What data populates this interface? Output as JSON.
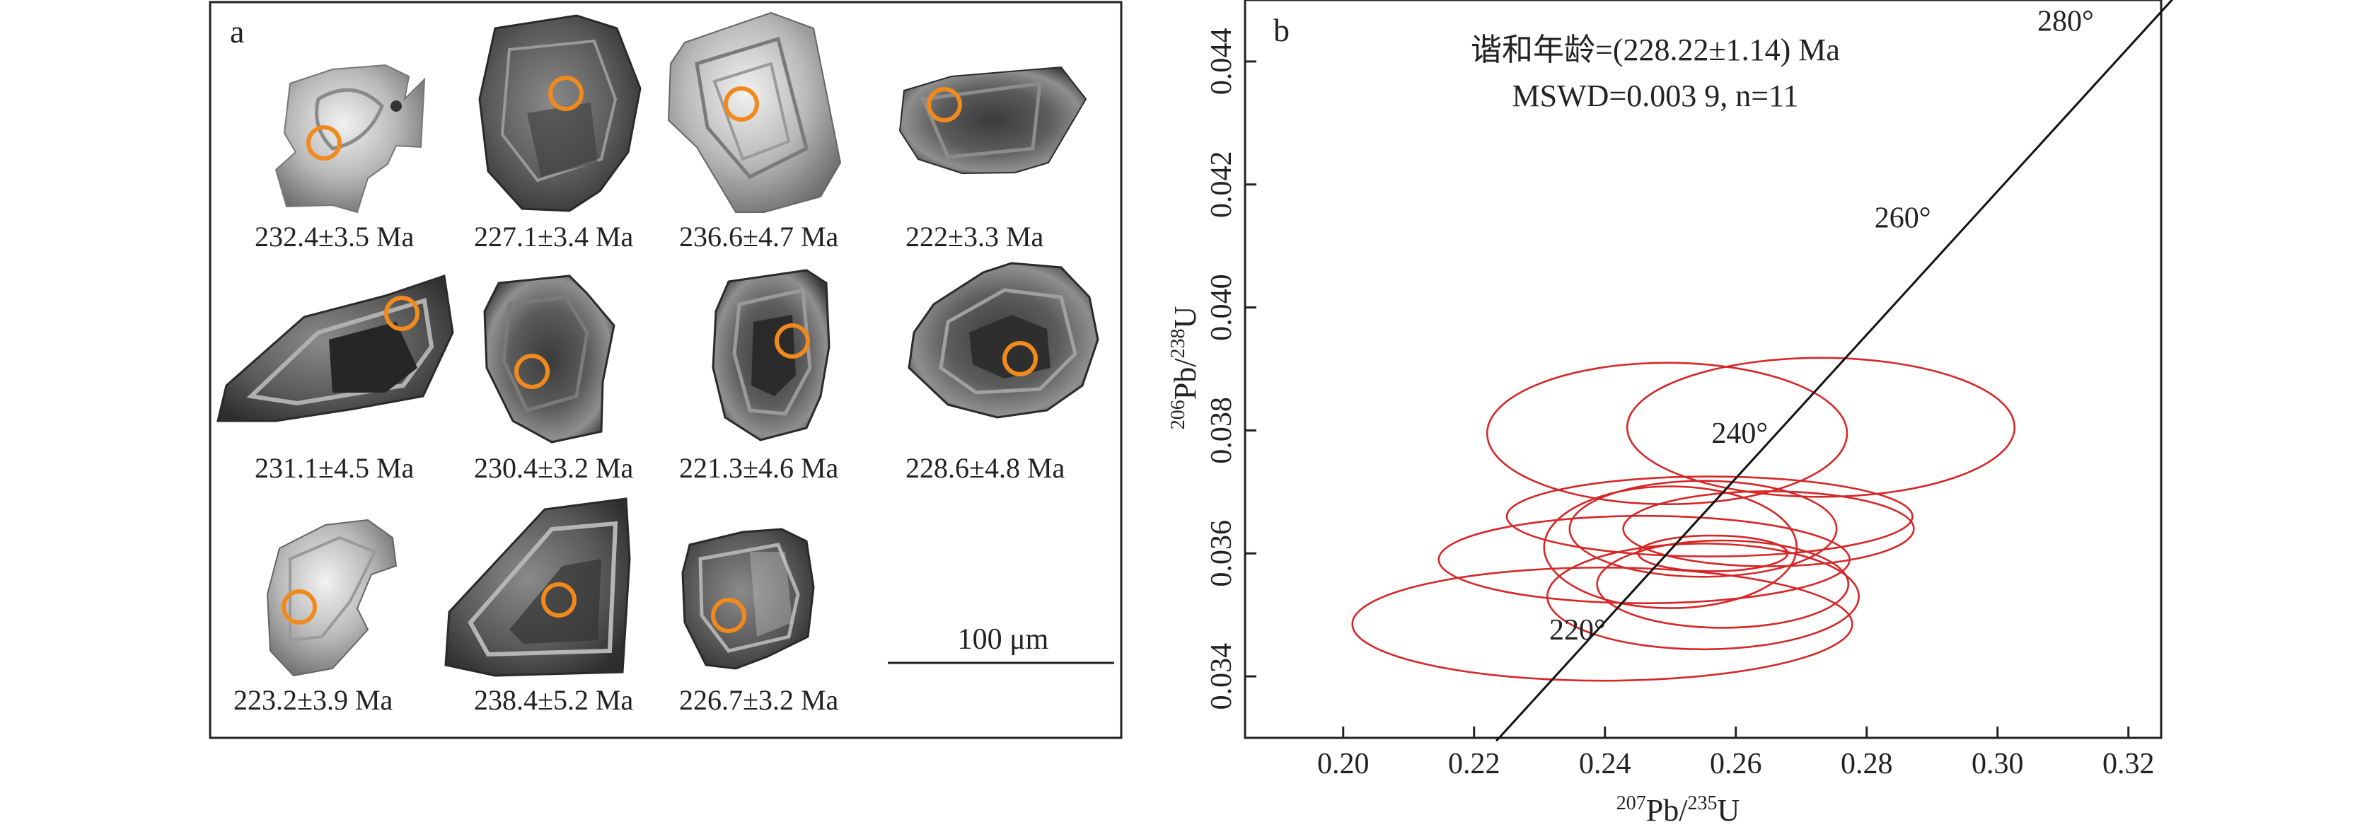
{
  "panel_a": {
    "label": "a",
    "scale_bar_label": "100 μm",
    "grains": [
      {
        "age": "232.4±3.5 Ma"
      },
      {
        "age": "227.1±3.4 Ma"
      },
      {
        "age": "236.6±4.7 Ma"
      },
      {
        "age": "222±3.3 Ma"
      },
      {
        "age": "231.1±4.5 Ma"
      },
      {
        "age": "230.4±3.2 Ma"
      },
      {
        "age": "221.3±4.6 Ma"
      },
      {
        "age": "228.6±4.8 Ma"
      },
      {
        "age": "223.2±3.9 Ma"
      },
      {
        "age": "238.4±5.2 Ma"
      },
      {
        "age": "226.7±3.2 Ma"
      }
    ],
    "colors": {
      "spot": "#f08a1c",
      "frame": "#222222"
    }
  },
  "panel_b": {
    "label": "b",
    "annotation_line1": "谐和年龄=(228.22±1.14) Ma",
    "annotation_line2": "MSWD=0.003 9, n=11",
    "xlabel_sup": "207",
    "xlabel_mid": "Pb/",
    "xlabel_sup2": "235",
    "xlabel_end": "U",
    "ylabel_sup": "206",
    "ylabel_mid": "Pb/",
    "ylabel_sup2": "238",
    "ylabel_end": "U"
  },
  "chart_data": {
    "type": "scatter",
    "xlim": [
      0.185,
      0.325
    ],
    "ylim": [
      0.033,
      0.045
    ],
    "x_ticks": [
      0.2,
      0.22,
      0.24,
      0.26,
      0.28,
      0.3,
      0.32
    ],
    "x_tick_labels": [
      "0.20",
      "0.22",
      "0.24",
      "0.26",
      "0.28",
      "0.30",
      "0.32"
    ],
    "y_ticks": [
      0.034,
      0.036,
      0.038,
      0.04,
      0.042,
      0.044
    ],
    "y_tick_labels": [
      "0.034",
      "0.036",
      "0.038",
      "0.040",
      "0.042",
      "0.044"
    ],
    "grid": false,
    "concordia": [
      {
        "x": 0.2234,
        "y": 0.03295
      },
      {
        "x": 0.3275,
        "y": 0.0451
      }
    ],
    "concordia_age_labels": [
      {
        "text": "220°",
        "x": 0.2358,
        "y": 0.0346
      },
      {
        "text": "240°",
        "x": 0.2606,
        "y": 0.0378
      },
      {
        "text": "260°",
        "x": 0.2855,
        "y": 0.0413
      },
      {
        "text": "280°",
        "x": 0.3104,
        "y": 0.0445
      }
    ],
    "ellipse_color": "#d62728",
    "ellipses": [
      {
        "cx": 0.2396,
        "cy": 0.03485,
        "rx": 0.0382,
        "ry": 0.00092
      },
      {
        "cx": 0.2495,
        "cy": 0.03795,
        "rx": 0.0275,
        "ry": 0.00115
      },
      {
        "cx": 0.273,
        "cy": 0.03805,
        "rx": 0.0296,
        "ry": 0.00113
      },
      {
        "cx": 0.255,
        "cy": 0.0364,
        "rx": 0.0204,
        "ry": 0.00078
      },
      {
        "cx": 0.256,
        "cy": 0.0366,
        "rx": 0.031,
        "ry": 0.00065
      },
      {
        "cx": 0.246,
        "cy": 0.0359,
        "rx": 0.0314,
        "ry": 0.00071
      },
      {
        "cx": 0.255,
        "cy": 0.0353,
        "rx": 0.0238,
        "ry": 0.00086
      },
      {
        "cx": 0.2565,
        "cy": 0.036,
        "rx": 0.0114,
        "ry": 0.00029
      },
      {
        "cx": 0.258,
        "cy": 0.0355,
        "rx": 0.0192,
        "ry": 0.00071
      },
      {
        "cx": 0.25,
        "cy": 0.0361,
        "rx": 0.0193,
        "ry": 0.00099
      },
      {
        "cx": 0.265,
        "cy": 0.0364,
        "rx": 0.0222,
        "ry": 0.00061
      }
    ]
  }
}
